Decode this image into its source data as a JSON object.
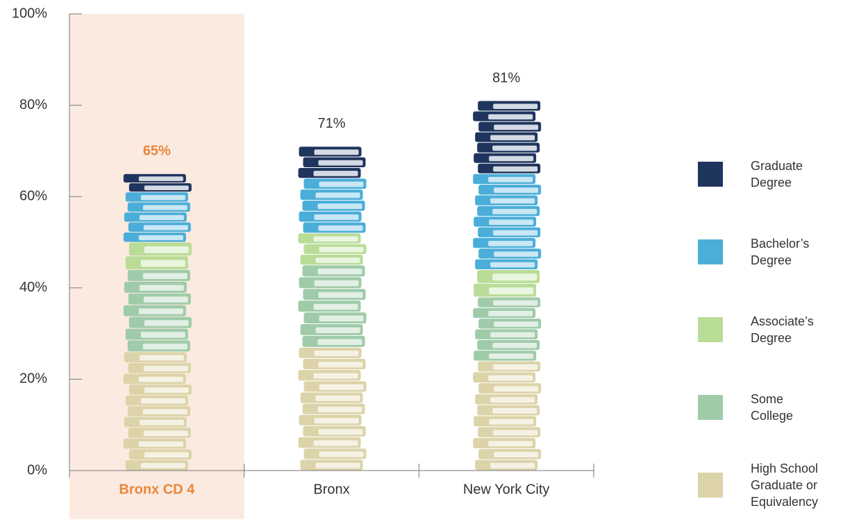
{
  "chart_data": {
    "type": "stacked-books",
    "categories": [
      "Bronx CD 4",
      "Bronx",
      "New York City"
    ],
    "series": [
      {
        "name": "High School Graduate or Equivalency",
        "color": "#dcd3a9",
        "values": [
          26,
          27,
          24
        ]
      },
      {
        "name": "Some College",
        "color": "#9fcba9",
        "values": [
          18,
          18,
          14
        ]
      },
      {
        "name": "Associate’s Degree",
        "color": "#b9dc97",
        "values": [
          6,
          7,
          6
        ]
      },
      {
        "name": "Bachelor’s Degree",
        "color": "#4aaed9",
        "values": [
          11,
          12,
          21
        ]
      },
      {
        "name": "Graduate Degree",
        "color": "#1f355e",
        "values": [
          4,
          7,
          16
        ]
      }
    ],
    "totals": {
      "values": [
        65,
        71,
        81
      ],
      "value_labels": [
        "65%",
        "71%",
        "81%"
      ]
    },
    "ylim": [
      0,
      100
    ],
    "yticks": [
      {
        "value": 0,
        "label": "0%"
      },
      {
        "value": 20,
        "label": "20%"
      },
      {
        "value": 40,
        "label": "40%"
      },
      {
        "value": 60,
        "label": "60%"
      },
      {
        "value": 80,
        "label": "80%"
      },
      {
        "value": 100,
        "label": "100%"
      }
    ],
    "highlight": 0,
    "highlight_fill": "#fbeadf",
    "highlight_text_color": "#e8873a"
  }
}
